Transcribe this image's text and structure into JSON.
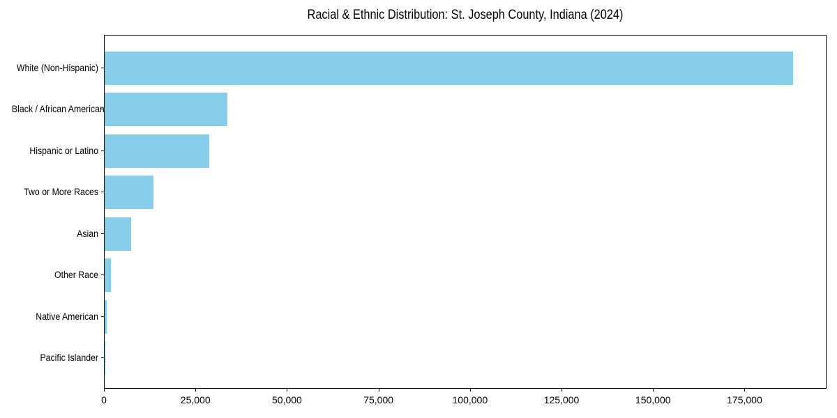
{
  "chart_data": {
    "type": "bar",
    "orientation": "horizontal",
    "title": "Racial & Ethnic Distribution: St. Joseph County, Indiana (2024)",
    "categories": [
      "White (Non-Hispanic)",
      "Black / African American",
      "Hispanic or Latino",
      "Two or More Races",
      "Asian",
      "Other Race",
      "Native American",
      "Pacific Islander"
    ],
    "values": [
      188000,
      33500,
      28650,
      13350,
      7250,
      1640,
      530,
      120
    ],
    "xlabel": "",
    "ylabel": "",
    "xlim": [
      0,
      197400
    ],
    "x_ticks": [
      0,
      25000,
      50000,
      75000,
      100000,
      125000,
      150000,
      175000
    ],
    "x_tick_labels": [
      "0",
      "25,000",
      "50,000",
      "75,000",
      "100,000",
      "125,000",
      "150,000",
      "175,000"
    ],
    "bar_color": "#87CEEB",
    "axis_color": "#000000",
    "background_color": "#FFFFFF",
    "grid": false,
    "legend": "none"
  }
}
